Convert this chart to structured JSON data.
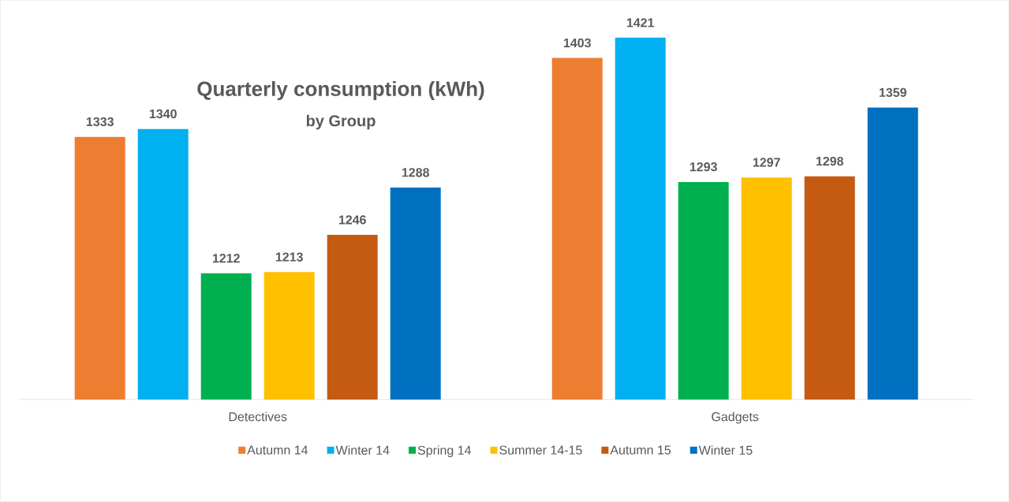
{
  "chart_data": {
    "type": "bar",
    "title": "Quarterly consumption (kWh)",
    "subtitle": "by Group",
    "categories": [
      "Detectives",
      "Gadgets"
    ],
    "series": [
      {
        "name": "Autumn 14",
        "color": "#ed7d31",
        "values": [
          1333,
          1403
        ]
      },
      {
        "name": "Winter 14",
        "color": "#00b0f0",
        "values": [
          1340,
          1421
        ]
      },
      {
        "name": "Spring 14",
        "color": "#00b050",
        "values": [
          1212,
          1293
        ]
      },
      {
        "name": "Summer 14-15",
        "color": "#ffc000",
        "values": [
          1213,
          1297
        ]
      },
      {
        "name": "Autumn 15",
        "color": "#c55a11",
        "values": [
          1246,
          1298
        ]
      },
      {
        "name": "Winter 15",
        "color": "#0070c0",
        "values": [
          1288,
          1359
        ]
      }
    ],
    "ylim": [
      1100,
      1421
    ],
    "tick_labels": "x",
    "data_labels": true,
    "legend": "bottom"
  }
}
